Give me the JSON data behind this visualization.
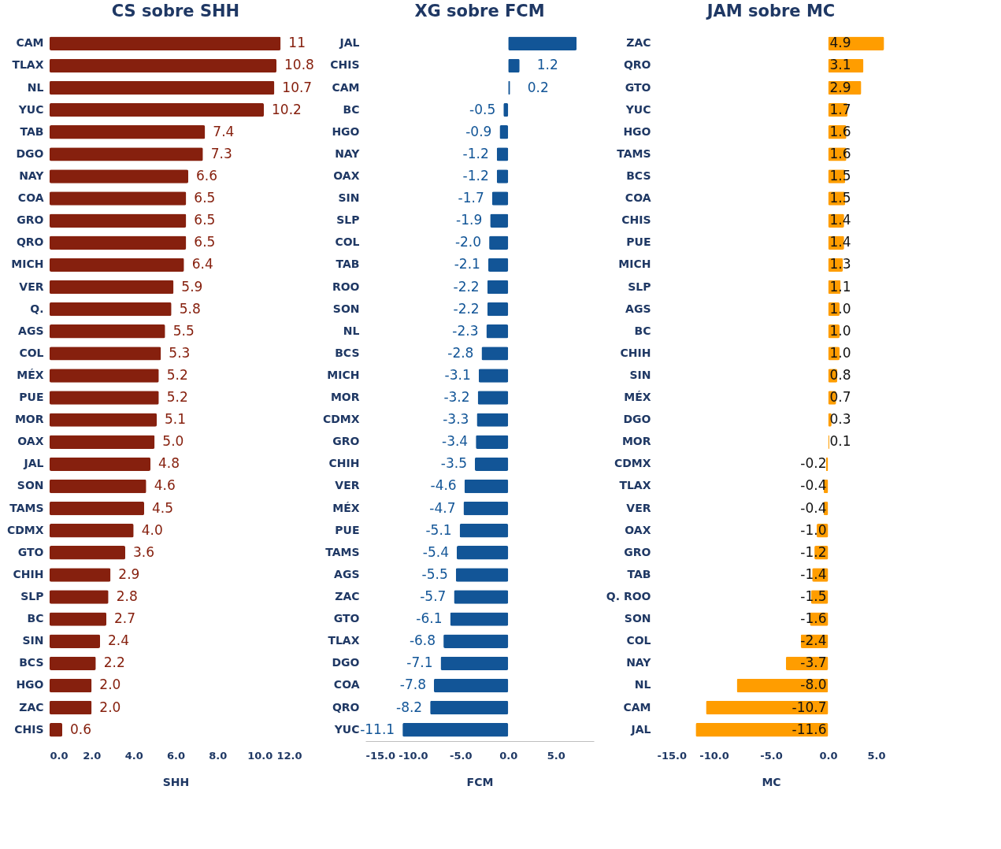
{
  "chart_data": [
    {
      "type": "bar",
      "orientation": "horizontal",
      "title": "CS sobre SHH",
      "xlabel": "SHH",
      "color": "#86200e",
      "grid": false,
      "xlim": [
        0,
        12
      ],
      "xticks": [
        {
          "value": 0,
          "label": "0.0"
        },
        {
          "value": 2,
          "label": "2.0"
        },
        {
          "value": 4,
          "label": "4.0"
        },
        {
          "value": 6,
          "label": "6.0"
        },
        {
          "value": 8,
          "label": "8.0"
        },
        {
          "value": 10,
          "label": "10.0"
        },
        {
          "value": 12,
          "label": "12.0"
        }
      ],
      "categories": [
        "CAM",
        "TLAX",
        "NL",
        "YUC",
        "TAB",
        "DGO",
        "NAY",
        "COA",
        "GRO",
        "QRO",
        "MICH",
        "VER",
        "Q.",
        "AGS",
        "COL",
        "MÉX",
        "PUE",
        "MOR",
        "OAX",
        "JAL",
        "SON",
        "TAMS",
        "CDMX",
        "GTO",
        "CHIH",
        "SLP",
        "BC",
        "SIN",
        "BCS",
        "HGO",
        "ZAC",
        "CHIS"
      ],
      "values": [
        11,
        10.8,
        10.7,
        10.2,
        7.4,
        7.3,
        6.6,
        6.5,
        6.5,
        6.5,
        6.4,
        5.9,
        5.8,
        5.5,
        5.3,
        5.2,
        5.2,
        5.1,
        5.0,
        4.8,
        4.6,
        4.5,
        4.0,
        3.6,
        2.9,
        2.8,
        2.7,
        2.4,
        2.2,
        2.0,
        2.0,
        0.6
      ],
      "value_labels": [
        "11",
        "10.8",
        "10.7",
        "10.2",
        "7.4",
        "7.3",
        "6.6",
        "6.5",
        "6.5",
        "6.5",
        "6.4",
        "5.9",
        "5.8",
        "5.5",
        "5.3",
        "5.2",
        "5.2",
        "5.1",
        "5.0",
        "4.8",
        "4.6",
        "4.5",
        "4.0",
        "3.6",
        "2.9",
        "2.8",
        "2.7",
        "2.4",
        "2.2",
        "2.0",
        "2.0",
        "0.6"
      ]
    },
    {
      "type": "bar",
      "orientation": "horizontal",
      "title": "XG sobre FCM",
      "xlabel": "FCM",
      "color": "#125597",
      "grid": false,
      "xlim": [
        -15,
        9
      ],
      "xticks": [
        {
          "value": -15,
          "label": "-15.0"
        },
        {
          "value": -10,
          "label": "-10.0"
        },
        {
          "value": -5,
          "label": "-5.0"
        },
        {
          "value": 0,
          "label": "0.0"
        },
        {
          "value": 5,
          "label": "5.0"
        }
      ],
      "categories": [
        "JAL",
        "CHIS",
        "CAM",
        "BC",
        "HGO",
        "NAY",
        "OAX",
        "SIN",
        "SLP",
        "COL",
        "TAB",
        "ROO",
        "SON",
        "NL",
        "BCS",
        "MICH",
        "MOR",
        "CDMX",
        "GRO",
        "CHIH",
        "VER",
        "MÉX",
        "PUE",
        "TAMS",
        "AGS",
        "ZAC",
        "GTO",
        "TLAX",
        "DGO",
        "COA",
        "QRO",
        "YUC"
      ],
      "values": [
        7.2,
        1.2,
        0.2,
        -0.5,
        -0.9,
        -1.2,
        -1.2,
        -1.7,
        -1.9,
        -2.0,
        -2.1,
        -2.2,
        -2.2,
        -2.3,
        -2.8,
        -3.1,
        -3.2,
        -3.3,
        -3.4,
        -3.5,
        -4.6,
        -4.7,
        -5.1,
        -5.4,
        -5.5,
        -5.7,
        -6.1,
        -6.8,
        -7.1,
        -7.8,
        -8.2,
        -11.1
      ],
      "value_labels": [
        null,
        "1.2",
        "0.2",
        "-0.5",
        "-0.9",
        "-1.2",
        "-1.2",
        "-1.7",
        "-1.9",
        "-2.0",
        "-2.1",
        "-2.2",
        "-2.2",
        "-2.3",
        "-2.8",
        "-3.1",
        "-3.2",
        "-3.3",
        "-3.4",
        "-3.5",
        "-4.6",
        "-4.7",
        "-5.1",
        "-5.4",
        "-5.5",
        "-5.7",
        "-6.1",
        "-6.8",
        "-7.1",
        "-7.8",
        "-8.2",
        "-11.1"
      ]
    },
    {
      "type": "bar",
      "orientation": "horizontal",
      "title": "JAM sobre MC",
      "xlabel": "MC",
      "color": "#ff9d00",
      "grid": false,
      "xlim": [
        -15,
        5
      ],
      "xticks": [
        {
          "value": -15,
          "label": "-15.0"
        },
        {
          "value": -10,
          "label": "-10.0"
        },
        {
          "value": -5,
          "label": "-5.0"
        },
        {
          "value": 0,
          "label": "0.0"
        },
        {
          "value": 5,
          "label": "5.0"
        }
      ],
      "categories": [
        "ZAC",
        "QRO",
        "GTO",
        "YUC",
        "HGO",
        "TAMS",
        "BCS",
        "COA",
        "CHIS",
        "PUE",
        "MICH",
        "SLP",
        "AGS",
        "BC",
        "CHIH",
        "SIN",
        "MÉX",
        "DGO",
        "MOR",
        "CDMX",
        "TLAX",
        "VER",
        "OAX",
        "GRO",
        "TAB",
        "Q. ROO",
        "SON",
        "COL",
        "NAY",
        "NL",
        "CAM",
        "JAL"
      ],
      "values": [
        4.9,
        3.1,
        2.9,
        1.7,
        1.6,
        1.6,
        1.5,
        1.5,
        1.4,
        1.4,
        1.3,
        1.1,
        1.0,
        1.0,
        1.0,
        0.8,
        0.7,
        0.3,
        0.1,
        -0.2,
        -0.4,
        -0.4,
        -1.0,
        -1.2,
        -1.4,
        -1.5,
        -1.6,
        -2.4,
        -3.7,
        -8.0,
        -10.7,
        -11.6
      ],
      "value_labels": [
        "4.9",
        "3.1",
        "2.9",
        "1.7",
        "1.6",
        "1.6",
        "1.5",
        "1.5",
        "1.4",
        "1.4",
        "1.3",
        "1.1",
        "1.0",
        "1.0",
        "1.0",
        "0.8",
        "0.7",
        "0.3",
        "0.1",
        "-0.2",
        "-0.4",
        "-0.4",
        "-1.0",
        "-1.2",
        "-1.4",
        "-1.5",
        "-1.6",
        "-2.4",
        "-3.7",
        "-8.0",
        "-10.7",
        "-11.6"
      ]
    }
  ]
}
